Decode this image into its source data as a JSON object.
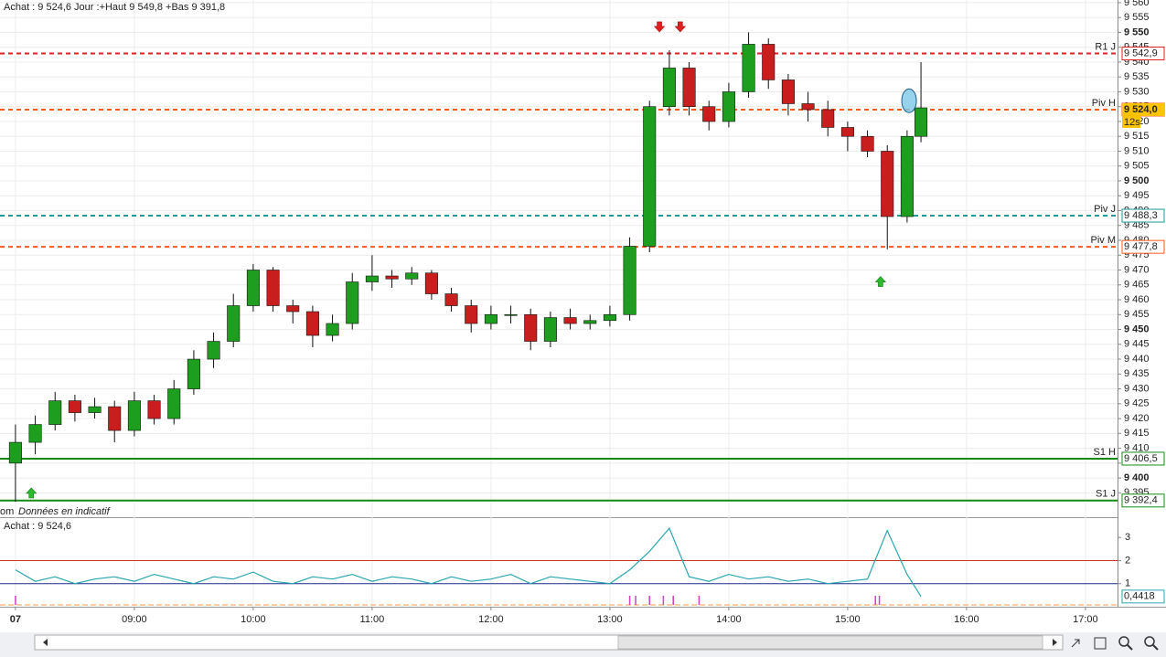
{
  "chart_data": [
    {
      "type": "candlestick",
      "title": "Achat : 9 524,6 Jour :+Haut 9 549,8 +Bas 9 391,8",
      "footer_prefix": "om",
      "footer": "Données en indicatif",
      "up_color": "#1e9e1e",
      "down_color": "#c81e1e",
      "grid": true,
      "x": [
        480,
        490,
        500,
        510,
        520,
        530,
        540,
        550,
        560,
        570,
        580,
        590,
        600,
        610,
        620,
        630,
        640,
        650,
        660,
        670,
        680,
        690,
        700,
        710,
        720,
        730,
        740,
        750,
        760,
        770,
        780,
        790,
        800,
        810,
        820,
        830,
        840,
        850,
        860,
        870,
        880,
        890,
        900,
        910,
        920,
        930,
        937
      ],
      "open": [
        9405,
        9412,
        9418,
        9426,
        9422,
        9424,
        9416,
        9426,
        9420,
        9430,
        9440,
        9446,
        9458,
        9470,
        9458,
        9456,
        9448,
        9452,
        9466,
        9468,
        9467,
        9469,
        9462,
        9458,
        9452,
        9455,
        9455,
        9446,
        9454,
        9452,
        9453,
        9455,
        9478,
        9525,
        9538,
        9525,
        9520,
        9530,
        9546,
        9534,
        9526,
        9524,
        9518,
        9515,
        9510,
        9488,
        9515
      ],
      "high": [
        9418,
        9421,
        9429,
        9428,
        9427,
        9426,
        9429,
        9428,
        9433,
        9443,
        9449,
        9462,
        9472,
        9471,
        9460,
        9458,
        9455,
        9469,
        9475,
        9470,
        9471,
        9470,
        9464,
        9460,
        9458,
        9458,
        9457,
        9456,
        9457,
        9455,
        9458,
        9481,
        9527,
        9544,
        9540,
        9527,
        9533,
        9550,
        9548,
        9536,
        9530,
        9527,
        9520,
        9517,
        9512,
        9517,
        9540
      ],
      "low": [
        9392,
        9408,
        9416,
        9419,
        9420,
        9412,
        9414,
        9418,
        9418,
        9428,
        9437,
        9444,
        9456,
        9456,
        9452,
        9444,
        9446,
        9450,
        9463,
        9464,
        9465,
        9460,
        9456,
        9449,
        9450,
        9452,
        9443,
        9444,
        9450,
        9450,
        9451,
        9453,
        9476,
        9522,
        9522,
        9517,
        9518,
        9528,
        9531,
        9522,
        9520,
        9515,
        9510,
        9508,
        9477,
        9486,
        9513
      ],
      "close": [
        9412,
        9418,
        9426,
        9422,
        9424,
        9416,
        9426,
        9420,
        9430,
        9440,
        9446,
        9458,
        9470,
        9458,
        9456,
        9448,
        9452,
        9466,
        9468,
        9467,
        9469,
        9462,
        9458,
        9452,
        9455,
        9455,
        9446,
        9454,
        9452,
        9453,
        9455,
        9478,
        9525,
        9538,
        9525,
        9520,
        9530,
        9546,
        9534,
        9526,
        9524,
        9518,
        9515,
        9510,
        9488,
        9515,
        9524.6
      ],
      "xlim": [
        472.2,
        1036.2
      ],
      "xticks": [
        {
          "value": 480,
          "label": "07"
        },
        {
          "value": 540,
          "label": "09:00"
        },
        {
          "value": 600,
          "label": "10:00"
        },
        {
          "value": 660,
          "label": "11:00"
        },
        {
          "value": 720,
          "label": "12:00"
        },
        {
          "value": 780,
          "label": "13:00"
        },
        {
          "value": 840,
          "label": "14:00"
        },
        {
          "value": 900,
          "label": "15:00"
        },
        {
          "value": 960,
          "label": "16:00"
        },
        {
          "value": 1020,
          "label": "17:00"
        }
      ],
      "ylim": [
        9386.8,
        9560.9
      ],
      "yticks": [
        {
          "value": 9395,
          "label": "9 395"
        },
        {
          "value": 9400,
          "label": "9 400"
        },
        {
          "value": 9405,
          "label": "9 405"
        },
        {
          "value": 9410,
          "label": "9 410"
        },
        {
          "value": 9415,
          "label": "9 415"
        },
        {
          "value": 9420,
          "label": "9 420"
        },
        {
          "value": 9425,
          "label": "9 425"
        },
        {
          "value": 9430,
          "label": "9 430"
        },
        {
          "value": 9435,
          "label": "9 435"
        },
        {
          "value": 9440,
          "label": "9 440"
        },
        {
          "value": 9445,
          "label": "9 445"
        },
        {
          "value": 9450,
          "label": "9 450"
        },
        {
          "value": 9455,
          "label": "9 455"
        },
        {
          "value": 9460,
          "label": "9 460"
        },
        {
          "value": 9465,
          "label": "9 465"
        },
        {
          "value": 9470,
          "label": "9 470"
        },
        {
          "value": 9475,
          "label": "9 475"
        },
        {
          "value": 9480,
          "label": "9 480"
        },
        {
          "value": 9485,
          "label": "9 485"
        },
        {
          "value": 9490,
          "label": "9 490"
        },
        {
          "value": 9495,
          "label": "9 495"
        },
        {
          "value": 9500,
          "label": "9 500"
        },
        {
          "value": 9505,
          "label": "9 505"
        },
        {
          "value": 9510,
          "label": "9 510"
        },
        {
          "value": 9515,
          "label": "9 515"
        },
        {
          "value": 9520,
          "label": "9 520"
        },
        {
          "value": 9525,
          "label": "9 525"
        },
        {
          "value": 9530,
          "label": "9 530"
        },
        {
          "value": 9535,
          "label": "9 535"
        },
        {
          "value": 9540,
          "label": "9 540"
        },
        {
          "value": 9545,
          "label": "9 545"
        },
        {
          "value": 9550,
          "label": "9 550"
        },
        {
          "value": 9555,
          "label": "9 555"
        },
        {
          "value": 9560,
          "label": "9 560"
        }
      ],
      "levels": [
        {
          "name": "R1 J",
          "value": 9542.9,
          "value_label": "9 542,9",
          "color": "#e02020",
          "style": "dashed"
        },
        {
          "name": "Piv H",
          "value": 9524.0,
          "value_label": "9 524,0",
          "color": "#ff5a1e",
          "style": "dashed"
        },
        {
          "name": "Piv J",
          "value": 9488.3,
          "value_label": "9 488,3",
          "color": "#1a9a9a",
          "style": "dashed"
        },
        {
          "name": "Piv M",
          "value": 9477.8,
          "value_label": "9 477,8",
          "color": "#ff5a1e",
          "style": "dashed"
        },
        {
          "name": "S1 H",
          "value": 9406.5,
          "value_label": "9 406,5",
          "color": "#148c14",
          "style": "solid"
        },
        {
          "name": "S1 J",
          "value": 9392.4,
          "value_label": "9 392,4",
          "color": "#148c14",
          "style": "solid"
        }
      ],
      "current": {
        "value": 9524.0,
        "label": "9 524,0",
        "timer": "12s"
      },
      "arrows": [
        {
          "x": 488,
          "y": 9394.8,
          "dir": "up"
        },
        {
          "x": 805,
          "y": 9552,
          "dir": "down"
        },
        {
          "x": 815.5,
          "y": 9552,
          "dir": "down"
        },
        {
          "x": 916.6,
          "y": 9466,
          "dir": "up"
        }
      ],
      "highlight": {
        "x": 931,
        "y": 9527
      }
    },
    {
      "type": "line",
      "title": "Achat : 9 524,6",
      "color": "#2aa6b0",
      "values": [
        1.6,
        1.1,
        1.3,
        1.0,
        1.2,
        1.3,
        1.1,
        1.4,
        1.2,
        1.0,
        1.3,
        1.2,
        1.5,
        1.1,
        1.0,
        1.3,
        1.2,
        1.4,
        1.1,
        1.3,
        1.2,
        1.0,
        1.3,
        1.1,
        1.2,
        1.4,
        1.0,
        1.3,
        1.2,
        1.1,
        1.0,
        1.6,
        2.4,
        3.4,
        1.3,
        1.1,
        1.4,
        1.2,
        1.3,
        1.1,
        1.2,
        1.0,
        1.1,
        1.2,
        3.3,
        1.4,
        0.4418
      ],
      "last_label": "0,4418",
      "ylim": [
        0,
        3.8
      ],
      "yticks": [
        1,
        2,
        3
      ],
      "levels": [
        {
          "value": 2,
          "color": "#d03030"
        },
        {
          "value": 1,
          "color": "#1a2a8a"
        }
      ],
      "signals": [
        480,
        790,
        793,
        800,
        807,
        812,
        825,
        914,
        916
      ],
      "signal_color": "#d040c0"
    }
  ]
}
